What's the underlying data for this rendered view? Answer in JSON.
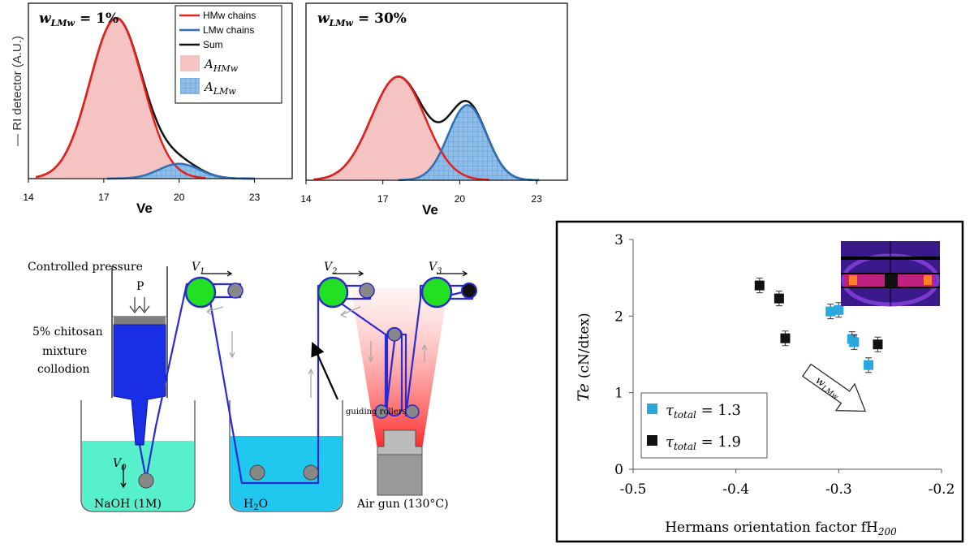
{
  "colors": {
    "hmw": "#e8201c",
    "lmw": "#2e6fb6",
    "sum": "#111111",
    "hmw_fill": "#f6c3c3",
    "lmw_fill": "#8fbde6",
    "roller_green": "#22e022",
    "belt": "#2a2ad0",
    "naoh_bath": "#57f0cc",
    "water_bath": "#20c8f0",
    "tau13": "#29a8e0",
    "tau19": "#111111"
  },
  "gpc": {
    "y_axis_label": "RI detector (A.U.)",
    "x_label": "Ve",
    "legend": {
      "hmw": "HMw chains",
      "lmw": "LMw chains",
      "sum": "Sum",
      "a_hmw": "A",
      "a_hmw_sub": "HMw",
      "a_lmw": "A",
      "a_lmw_sub": "LMw"
    },
    "panel1_title_w": "w",
    "panel1_title_sub": "LMw",
    "panel1_title_val": " = 1%",
    "panel2_title_w": "w",
    "panel2_title_sub": "LMw",
    "panel2_title_val": " = 30%"
  },
  "spinning": {
    "controlled_pressure": "Controlled pressure",
    "p": "P",
    "chitosan_1": "5% chitosan",
    "chitosan_2": "mixture",
    "chitosan_3": "collodion",
    "v0": "V",
    "v0_sub": "0",
    "v1": "V",
    "v1_sub": "1",
    "v2": "V",
    "v2_sub": "2",
    "v3": "V",
    "v3_sub": "3",
    "guiding_rollers": "guiding rollers",
    "naoh": "NaOH (1M)",
    "water": "H",
    "water_sub": "2",
    "water_end": "O",
    "air_gun": "Air gun (130°C)"
  },
  "chart_data": [
    {
      "type": "line",
      "panel": "gpc-1",
      "title": "wLMw = 1%",
      "xlabel": "Ve",
      "ylabel": "RI detector (A.U.)",
      "xlim": [
        14,
        24.5
      ],
      "ylim": [
        0,
        1.05
      ],
      "xticks": [
        "14",
        "17",
        "20",
        "23"
      ],
      "series": [
        {
          "name": "HMw chains",
          "peak_x": 17.5,
          "peak_y": 0.97,
          "sigma": 1.05
        },
        {
          "name": "LMw chains",
          "peak_x": 20.0,
          "peak_y": 0.09,
          "sigma": 0.8
        },
        {
          "name": "Sum"
        }
      ]
    },
    {
      "type": "line",
      "panel": "gpc-2",
      "title": "wLMw = 30%",
      "xlabel": "Ve",
      "xlim": [
        14,
        24.2
      ],
      "ylim": [
        0,
        1.05
      ],
      "xticks": [
        "14",
        "17",
        "20",
        "23"
      ],
      "series": [
        {
          "name": "HMw chains",
          "peak_x": 17.6,
          "peak_y": 0.62,
          "sigma": 1.05
        },
        {
          "name": "LMw chains",
          "peak_x": 20.3,
          "peak_y": 0.45,
          "sigma": 0.75
        },
        {
          "name": "Sum"
        }
      ]
    },
    {
      "type": "scatter",
      "panel": "tenacity",
      "xlabel": "Hermans orientation factor fH",
      "xlabel_sub": "200",
      "ylabel": "Te",
      "ylabel_unit": "(cN/dtex)",
      "xlim": [
        -0.5,
        -0.2
      ],
      "ylim": [
        0,
        3
      ],
      "xticks": [
        "-0.5",
        "-0.4",
        "-0.3",
        "-0.2"
      ],
      "yticks": [
        "0",
        "1",
        "2",
        "3"
      ],
      "arrow_label": "w",
      "arrow_label_sub": "LMw",
      "legend": [
        {
          "name": "τ",
          "sub": "total",
          "value": " = 1.3"
        },
        {
          "name": "τ",
          "sub": "total",
          "value": " = 1.9"
        }
      ],
      "series": [
        {
          "name": "τtotal = 1.3",
          "points": [
            [
              -0.308,
              2.06
            ],
            [
              -0.3,
              2.08
            ],
            [
              -0.287,
              1.7
            ],
            [
              -0.285,
              1.66
            ],
            [
              -0.271,
              1.36
            ]
          ]
        },
        {
          "name": "τtotal = 1.9",
          "points": [
            [
              -0.377,
              2.4
            ],
            [
              -0.358,
              2.23
            ],
            [
              -0.352,
              1.71
            ],
            [
              -0.262,
              1.63
            ],
            [
              -0.248,
              2.41
            ]
          ]
        }
      ]
    }
  ]
}
